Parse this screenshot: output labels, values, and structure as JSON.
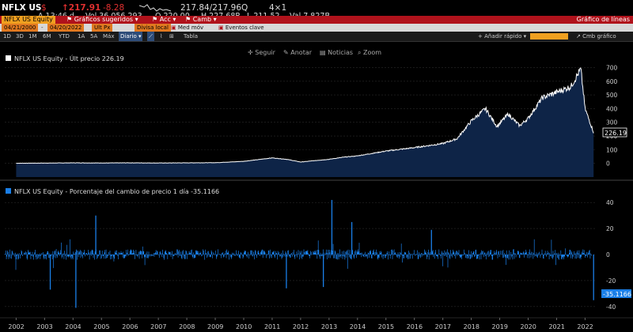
{
  "quote": {
    "ticker": "NFLX US",
    "currency": "$",
    "last": "↑217.91",
    "change": "-8.28",
    "time": "A 13:46 d",
    "volume": "Vol 36,056,293",
    "open": "O 220.00",
    "bid_ask": "217.84/217.96Q",
    "size": "4×1",
    "high": "H 227.68P",
    "low": "L 211.52",
    "value": "Val 7.827B"
  },
  "menubar": {
    "security": "NFLX US Equity",
    "related": "Gráficos sugeridos",
    "actions": "Acc",
    "change": "Camb",
    "title": "Gráfico de líneas"
  },
  "controls": {
    "start_date": "04/21/2000",
    "end_date": "04/20/2022",
    "price_field": "Ult Px",
    "currency_field": "Divisa local",
    "moving_avg": "Med móv",
    "events": "Eventos clave"
  },
  "tabs": {
    "periods": [
      "1D",
      "3D",
      "1M",
      "6M",
      "YTD",
      "1A",
      "5A",
      "Máx"
    ],
    "interval": "Diario",
    "table": "Tabla",
    "quick_add": "Añadir rápido",
    "style": "Cmb gráfico"
  },
  "tools": {
    "follow": "Seguir",
    "annotate": "Anotar",
    "news": "Noticias",
    "zoom": "Zoom"
  },
  "colors": {
    "bg": "#000000",
    "menubar": "#b0121b",
    "accent": "#f0a020",
    "price_line": "#ffffff",
    "price_fill": "#0e2447",
    "change_bar": "#1a7fe8"
  },
  "chart_data": [
    {
      "type": "area",
      "legend": "NFLX US Equity - Últ precio 226.19",
      "last_value_label": "226.19",
      "ylim": [
        -100,
        720
      ],
      "yticks": [
        0,
        100,
        200,
        300,
        400,
        500,
        600,
        700
      ],
      "x": [
        2002,
        2003,
        2004,
        2005,
        2006,
        2007,
        2008,
        2009,
        2010,
        2011,
        2011.5,
        2012,
        2012.5,
        2013,
        2013.5,
        2014,
        2015,
        2016,
        2017,
        2017.5,
        2018,
        2018.5,
        2018.9,
        2019.3,
        2019.7,
        2020,
        2020.5,
        2021,
        2021.5,
        2021.85,
        2022,
        2022.3
      ],
      "values": [
        1,
        2,
        4,
        3,
        4,
        3,
        4,
        5,
        15,
        40,
        30,
        10,
        20,
        30,
        45,
        55,
        90,
        115,
        145,
        180,
        310,
        400,
        270,
        360,
        275,
        330,
        480,
        520,
        560,
        690,
        400,
        226
      ],
      "xlabel_ticks": [
        "2002",
        "2003",
        "2004",
        "2005",
        "2006",
        "2007",
        "2008",
        "2009",
        "2010",
        "2011",
        "2012",
        "2013",
        "2014",
        "2015",
        "2016",
        "2017",
        "2018",
        "2019",
        "2020",
        "2021",
        "2022"
      ]
    },
    {
      "type": "bar",
      "legend": "NFLX US Equity - Porcentaje del cambio de precio 1 día -35.1166",
      "last_value_label": "-35.1166",
      "ylim": [
        -45,
        45
      ],
      "yticks": [
        -40,
        -20,
        0,
        20,
        40
      ],
      "notable_spikes": [
        {
          "x": 2004.1,
          "value": -41
        },
        {
          "x": 2003.2,
          "value": -27
        },
        {
          "x": 2011.5,
          "value": -26
        },
        {
          "x": 2012.8,
          "value": -25
        },
        {
          "x": 2013.1,
          "value": 42
        },
        {
          "x": 2013.8,
          "value": 25
        },
        {
          "x": 2004.8,
          "value": 30
        },
        {
          "x": 2016.6,
          "value": 19
        },
        {
          "x": 2022.3,
          "value": -35.1166
        }
      ]
    }
  ]
}
